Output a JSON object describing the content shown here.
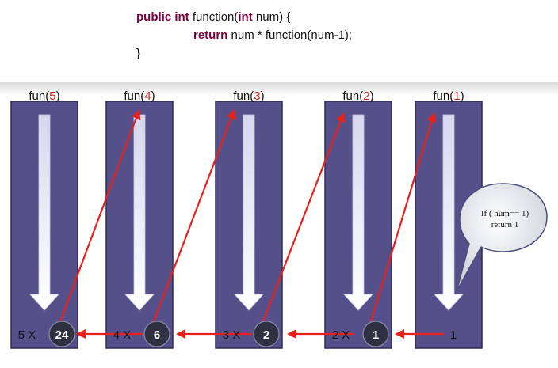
{
  "code": {
    "line1": {
      "kw1": "public",
      "kw2": "int",
      "text1": "function(",
      "kw3": "int",
      "text2": "num) {"
    },
    "line2": {
      "kw": "return",
      "text": "num * function(num-1);"
    },
    "line3": "}"
  },
  "columns": [
    {
      "title_prefix": "fun(",
      "arg": "5",
      "title_suffix": ")",
      "multiplier": "5 X",
      "result": "24"
    },
    {
      "title_prefix": "fun(",
      "arg": "4",
      "title_suffix": ")",
      "multiplier": "4 X",
      "result": "6"
    },
    {
      "title_prefix": "fun(",
      "arg": "3",
      "title_suffix": ")",
      "multiplier": "3 X",
      "result": "2"
    },
    {
      "title_prefix": "fun(",
      "arg": "2",
      "title_suffix": ")",
      "multiplier": "2 X",
      "result": "1"
    },
    {
      "title_prefix": "fun(",
      "arg": "1",
      "title_suffix": ")",
      "multiplier": "",
      "result": "1"
    }
  ],
  "callout": {
    "line1": "If ( num== 1)",
    "line2": "return 1"
  },
  "colors": {
    "column_fill": "#55508a",
    "column_stroke": "#2e2a55",
    "arrow_red": "#e8201c",
    "circle_fill": "#2f3142",
    "arg_red": "#d0201c",
    "keyword": "#7f0040"
  }
}
